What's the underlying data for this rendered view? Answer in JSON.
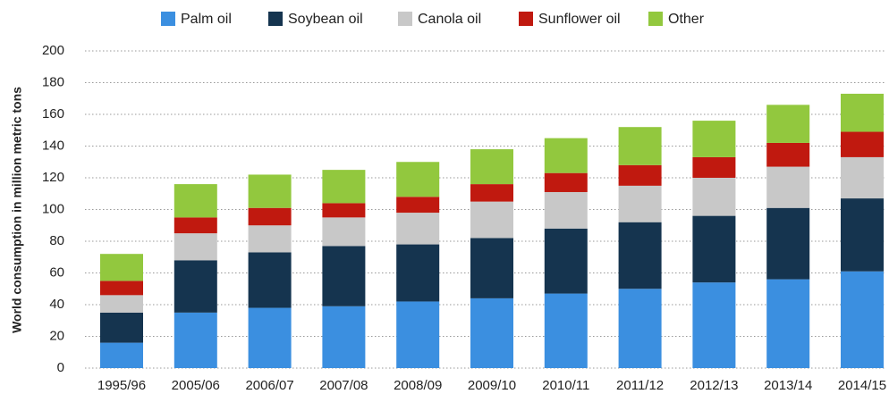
{
  "chart_data": {
    "type": "stacked_bar",
    "y_label": "World consumption in million metric tons",
    "categories": [
      "1995/96",
      "2005/06",
      "2006/07",
      "2007/08",
      "2008/09",
      "2009/10",
      "2010/11",
      "2011/12",
      "2012/13",
      "2013/14",
      "2014/15"
    ],
    "series": [
      {
        "name": "Palm oil",
        "color": "#3b8fe0",
        "values": [
          16,
          35,
          38,
          39,
          42,
          44,
          47,
          50,
          54,
          56,
          61
        ]
      },
      {
        "name": "Soybean oil",
        "color": "#15344f",
        "values": [
          19,
          33,
          35,
          38,
          36,
          38,
          41,
          42,
          42,
          45,
          46
        ]
      },
      {
        "name": "Canola oil",
        "color": "#c8c8c8",
        "values": [
          11,
          17,
          17,
          18,
          20,
          23,
          23,
          23,
          24,
          26,
          26
        ]
      },
      {
        "name": "Sunflower oil",
        "color": "#c0190f",
        "values": [
          9,
          10,
          11,
          9,
          10,
          11,
          12,
          13,
          13,
          15,
          16
        ]
      },
      {
        "name": "Other",
        "color": "#92c83e",
        "values": [
          17,
          21,
          21,
          21,
          22,
          22,
          22,
          24,
          23,
          24,
          24
        ]
      }
    ],
    "ylim": [
      0,
      200
    ],
    "yticks": [
      0,
      20,
      40,
      60,
      80,
      100,
      120,
      140,
      160,
      180,
      200
    ],
    "grid": true,
    "legend": "top"
  }
}
